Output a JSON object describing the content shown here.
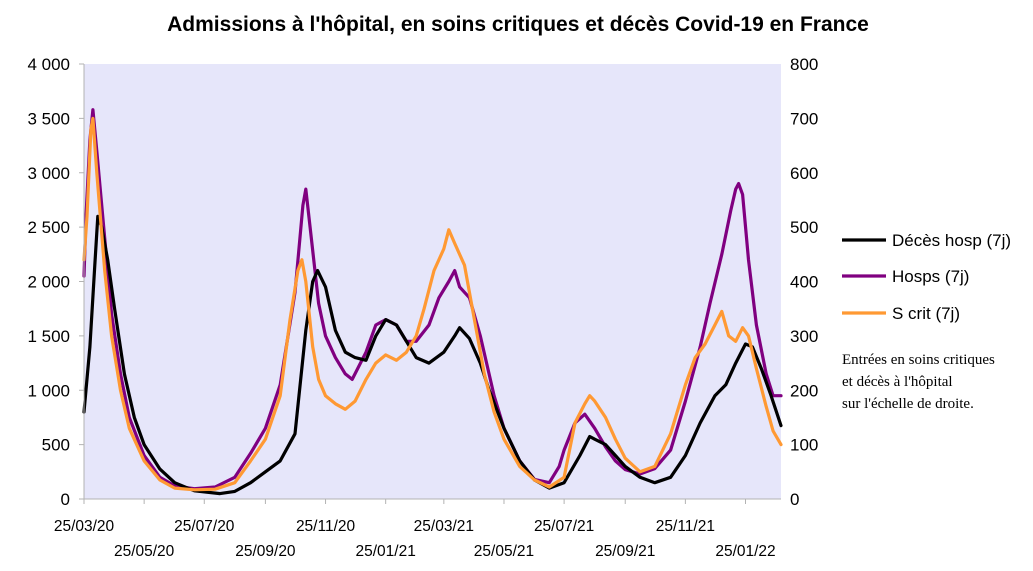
{
  "chart_data": {
    "type": "line",
    "title": "Admissions à l'hôpital, en soins critiques et décès Covid-19 en France",
    "xlabel": "",
    "ylabel": "",
    "ylim": [
      0,
      4000
    ],
    "y2lim": [
      0,
      800
    ],
    "y_ticks": [
      "0",
      "500",
      "1 000",
      "1 500",
      "2 000",
      "2 500",
      "3 000",
      "3 500",
      "4 000"
    ],
    "y2_ticks": [
      "0",
      "100",
      "200",
      "300",
      "400",
      "500",
      "600",
      "700",
      "800"
    ],
    "x_ticks_upper": [
      "25/03/20",
      "25/07/20",
      "25/11/20",
      "25/03/21",
      "25/07/21",
      "25/11/21"
    ],
    "x_ticks_lower": [
      "25/05/20",
      "25/09/20",
      "25/01/21",
      "25/05/21",
      "25/09/21",
      "25/01/22"
    ],
    "x_tick_dates": {
      "25/03/20": "2020-03-25",
      "25/05/20": "2020-05-25",
      "25/07/20": "2020-07-25",
      "25/09/20": "2020-09-25",
      "25/11/20": "2020-11-25",
      "25/01/21": "2021-01-25",
      "25/03/21": "2021-03-25",
      "25/05/21": "2021-05-25",
      "25/07/21": "2021-07-25",
      "25/09/21": "2021-09-25",
      "25/11/21": "2021-11-25",
      "25/01/22": "2022-01-25"
    },
    "x_range": [
      "2020-03-25",
      "2022-03-02"
    ],
    "grid": false,
    "legend_position": "right",
    "annotation": [
      "Entrées en soins critiques",
      "et décès à l'hôpital",
      "sur l'échelle de droite."
    ],
    "series": [
      {
        "name": "Décès hosp (7j)",
        "axis": "right",
        "color": "#000000",
        "points": [
          [
            "2020-03-25",
            160
          ],
          [
            "2020-03-31",
            280
          ],
          [
            "2020-04-05",
            430
          ],
          [
            "2020-04-08",
            520
          ],
          [
            "2020-04-12",
            500
          ],
          [
            "2020-04-18",
            440
          ],
          [
            "2020-04-25",
            350
          ],
          [
            "2020-05-05",
            230
          ],
          [
            "2020-05-15",
            150
          ],
          [
            "2020-05-25",
            100
          ],
          [
            "2020-06-10",
            55
          ],
          [
            "2020-06-25",
            30
          ],
          [
            "2020-07-15",
            15
          ],
          [
            "2020-08-10",
            10
          ],
          [
            "2020-08-25",
            14
          ],
          [
            "2020-09-10",
            30
          ],
          [
            "2020-09-25",
            50
          ],
          [
            "2020-10-10",
            70
          ],
          [
            "2020-10-25",
            120
          ],
          [
            "2020-11-05",
            310
          ],
          [
            "2020-11-12",
            400
          ],
          [
            "2020-11-17",
            420
          ],
          [
            "2020-11-25",
            390
          ],
          [
            "2020-12-05",
            310
          ],
          [
            "2020-12-15",
            270
          ],
          [
            "2020-12-25",
            260
          ],
          [
            "2021-01-05",
            255
          ],
          [
            "2021-01-15",
            300
          ],
          [
            "2021-01-25",
            330
          ],
          [
            "2021-02-05",
            320
          ],
          [
            "2021-02-15",
            290
          ],
          [
            "2021-02-25",
            260
          ],
          [
            "2021-03-10",
            250
          ],
          [
            "2021-03-25",
            270
          ],
          [
            "2021-04-05",
            300
          ],
          [
            "2021-04-10",
            315
          ],
          [
            "2021-04-20",
            295
          ],
          [
            "2021-05-01",
            250
          ],
          [
            "2021-05-10",
            200
          ],
          [
            "2021-05-25",
            130
          ],
          [
            "2021-06-10",
            70
          ],
          [
            "2021-06-25",
            35
          ],
          [
            "2021-07-10",
            20
          ],
          [
            "2021-07-25",
            30
          ],
          [
            "2021-08-10",
            80
          ],
          [
            "2021-08-20",
            115
          ],
          [
            "2021-08-25",
            110
          ],
          [
            "2021-09-05",
            100
          ],
          [
            "2021-09-15",
            80
          ],
          [
            "2021-09-25",
            60
          ],
          [
            "2021-10-10",
            40
          ],
          [
            "2021-10-25",
            30
          ],
          [
            "2021-11-10",
            40
          ],
          [
            "2021-11-25",
            80
          ],
          [
            "2021-12-10",
            140
          ],
          [
            "2021-12-25",
            190
          ],
          [
            "2022-01-05",
            210
          ],
          [
            "2022-01-15",
            250
          ],
          [
            "2022-01-25",
            285
          ],
          [
            "2022-02-01",
            280
          ],
          [
            "2022-02-10",
            240
          ],
          [
            "2022-02-20",
            190
          ],
          [
            "2022-03-02",
            135
          ]
        ]
      },
      {
        "name": "Hosps (7j)",
        "axis": "left",
        "color": "#800080",
        "points": [
          [
            "2020-03-25",
            2050
          ],
          [
            "2020-03-27",
            2600
          ],
          [
            "2020-03-31",
            3300
          ],
          [
            "2020-04-03",
            3580
          ],
          [
            "2020-04-07",
            3200
          ],
          [
            "2020-04-15",
            2400
          ],
          [
            "2020-04-22",
            1700
          ],
          [
            "2020-05-01",
            1150
          ],
          [
            "2020-05-10",
            750
          ],
          [
            "2020-05-25",
            400
          ],
          [
            "2020-06-10",
            200
          ],
          [
            "2020-06-25",
            120
          ],
          [
            "2020-07-15",
            95
          ],
          [
            "2020-08-05",
            110
          ],
          [
            "2020-08-25",
            200
          ],
          [
            "2020-09-10",
            420
          ],
          [
            "2020-09-25",
            650
          ],
          [
            "2020-10-10",
            1050
          ],
          [
            "2020-10-25",
            1900
          ],
          [
            "2020-11-02",
            2700
          ],
          [
            "2020-11-05",
            2850
          ],
          [
            "2020-11-10",
            2450
          ],
          [
            "2020-11-18",
            1800
          ],
          [
            "2020-11-25",
            1500
          ],
          [
            "2020-12-05",
            1300
          ],
          [
            "2020-12-15",
            1150
          ],
          [
            "2020-12-22",
            1100
          ],
          [
            "2021-01-05",
            1350
          ],
          [
            "2021-01-15",
            1600
          ],
          [
            "2021-01-25",
            1650
          ],
          [
            "2021-02-05",
            1600
          ],
          [
            "2021-02-15",
            1450
          ],
          [
            "2021-02-25",
            1450
          ],
          [
            "2021-03-10",
            1600
          ],
          [
            "2021-03-20",
            1850
          ],
          [
            "2021-03-30",
            2000
          ],
          [
            "2021-04-05",
            2100
          ],
          [
            "2021-04-10",
            1950
          ],
          [
            "2021-04-20",
            1850
          ],
          [
            "2021-05-01",
            1500
          ],
          [
            "2021-05-15",
            950
          ],
          [
            "2021-05-25",
            650
          ],
          [
            "2021-06-10",
            350
          ],
          [
            "2021-06-25",
            180
          ],
          [
            "2021-07-10",
            150
          ],
          [
            "2021-07-20",
            300
          ],
          [
            "2021-07-25",
            450
          ],
          [
            "2021-08-05",
            700
          ],
          [
            "2021-08-15",
            780
          ],
          [
            "2021-08-25",
            650
          ],
          [
            "2021-09-05",
            480
          ],
          [
            "2021-09-15",
            350
          ],
          [
            "2021-09-25",
            270
          ],
          [
            "2021-10-10",
            230
          ],
          [
            "2021-10-25",
            280
          ],
          [
            "2021-11-10",
            450
          ],
          [
            "2021-11-25",
            900
          ],
          [
            "2021-12-10",
            1400
          ],
          [
            "2021-12-20",
            1800
          ],
          [
            "2022-01-01",
            2250
          ],
          [
            "2022-01-10",
            2650
          ],
          [
            "2022-01-15",
            2850
          ],
          [
            "2022-01-18",
            2900
          ],
          [
            "2022-01-22",
            2800
          ],
          [
            "2022-01-28",
            2200
          ],
          [
            "2022-02-05",
            1600
          ],
          [
            "2022-02-15",
            1150
          ],
          [
            "2022-02-22",
            950
          ],
          [
            "2022-03-02",
            950
          ]
        ]
      },
      {
        "name": "S crit (7j)",
        "axis": "right",
        "color": "#ff9933",
        "points": [
          [
            "2020-03-25",
            440
          ],
          [
            "2020-03-28",
            520
          ],
          [
            "2020-04-01",
            680
          ],
          [
            "2020-04-03",
            700
          ],
          [
            "2020-04-07",
            600
          ],
          [
            "2020-04-15",
            420
          ],
          [
            "2020-04-22",
            300
          ],
          [
            "2020-05-01",
            200
          ],
          [
            "2020-05-10",
            130
          ],
          [
            "2020-05-25",
            70
          ],
          [
            "2020-06-10",
            35
          ],
          [
            "2020-06-25",
            20
          ],
          [
            "2020-07-15",
            17
          ],
          [
            "2020-08-05",
            18
          ],
          [
            "2020-08-25",
            30
          ],
          [
            "2020-09-10",
            70
          ],
          [
            "2020-09-25",
            110
          ],
          [
            "2020-10-10",
            190
          ],
          [
            "2020-10-20",
            330
          ],
          [
            "2020-10-28",
            420
          ],
          [
            "2020-11-01",
            440
          ],
          [
            "2020-11-05",
            400
          ],
          [
            "2020-11-12",
            280
          ],
          [
            "2020-11-18",
            220
          ],
          [
            "2020-11-25",
            190
          ],
          [
            "2020-12-05",
            175
          ],
          [
            "2020-12-15",
            165
          ],
          [
            "2020-12-25",
            180
          ],
          [
            "2021-01-05",
            220
          ],
          [
            "2021-01-15",
            250
          ],
          [
            "2021-01-25",
            265
          ],
          [
            "2021-02-05",
            255
          ],
          [
            "2021-02-15",
            270
          ],
          [
            "2021-02-25",
            300
          ],
          [
            "2021-03-05",
            350
          ],
          [
            "2021-03-15",
            420
          ],
          [
            "2021-03-25",
            460
          ],
          [
            "2021-03-30",
            495
          ],
          [
            "2021-04-05",
            470
          ],
          [
            "2021-04-15",
            430
          ],
          [
            "2021-04-25",
            330
          ],
          [
            "2021-05-05",
            230
          ],
          [
            "2021-05-15",
            160
          ],
          [
            "2021-05-25",
            110
          ],
          [
            "2021-06-10",
            60
          ],
          [
            "2021-06-25",
            35
          ],
          [
            "2021-07-10",
            22
          ],
          [
            "2021-07-25",
            40
          ],
          [
            "2021-08-05",
            140
          ],
          [
            "2021-08-15",
            175
          ],
          [
            "2021-08-20",
            190
          ],
          [
            "2021-08-25",
            180
          ],
          [
            "2021-09-05",
            150
          ],
          [
            "2021-09-15",
            110
          ],
          [
            "2021-09-25",
            75
          ],
          [
            "2021-10-10",
            50
          ],
          [
            "2021-10-25",
            60
          ],
          [
            "2021-11-10",
            120
          ],
          [
            "2021-11-25",
            210
          ],
          [
            "2021-12-05",
            260
          ],
          [
            "2021-12-15",
            285
          ],
          [
            "2021-12-25",
            320
          ],
          [
            "2022-01-01",
            345
          ],
          [
            "2022-01-08",
            300
          ],
          [
            "2022-01-15",
            290
          ],
          [
            "2022-01-22",
            315
          ],
          [
            "2022-01-28",
            300
          ],
          [
            "2022-02-05",
            240
          ],
          [
            "2022-02-15",
            170
          ],
          [
            "2022-02-22",
            125
          ],
          [
            "2022-03-02",
            100
          ]
        ]
      }
    ]
  }
}
